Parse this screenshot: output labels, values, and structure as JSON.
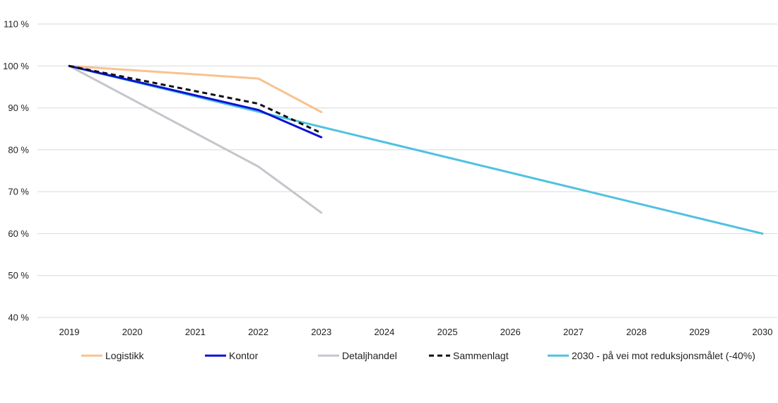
{
  "chart_data": {
    "type": "line",
    "title": "",
    "xlabel": "",
    "ylabel": "",
    "x": [
      "2019",
      "2020",
      "2021",
      "2022",
      "2023",
      "2024",
      "2025",
      "2026",
      "2027",
      "2028",
      "2029",
      "2030"
    ],
    "ylim": [
      40,
      110
    ],
    "yticks": [
      40,
      50,
      60,
      70,
      80,
      90,
      100,
      110
    ],
    "ytick_labels": [
      "40 %",
      "50 %",
      "60 %",
      "70 %",
      "80 %",
      "90 %",
      "100 %",
      "110 %"
    ],
    "grid": true,
    "legend_position": "bottom",
    "series": [
      {
        "name": "Logistikk",
        "color": "#f8c28e",
        "dashed": false,
        "points": [
          [
            "2019",
            100
          ],
          [
            "2020",
            99
          ],
          [
            "2021",
            98
          ],
          [
            "2022",
            97
          ],
          [
            "2023",
            89
          ]
        ]
      },
      {
        "name": "Kontor",
        "color": "#0a12d6",
        "dashed": false,
        "points": [
          [
            "2019",
            100
          ],
          [
            "2020",
            96.5
          ],
          [
            "2021",
            93
          ],
          [
            "2022",
            89.5
          ],
          [
            "2023",
            83
          ]
        ]
      },
      {
        "name": "Detaljhandel",
        "color": "#c5c5cc",
        "dashed": false,
        "points": [
          [
            "2019",
            100
          ],
          [
            "2020",
            92
          ],
          [
            "2021",
            84
          ],
          [
            "2022",
            76
          ],
          [
            "2023",
            65
          ]
        ]
      },
      {
        "name": "Sammenlagt",
        "color": "#111111",
        "dashed": true,
        "points": [
          [
            "2019",
            100
          ],
          [
            "2020",
            97
          ],
          [
            "2021",
            94
          ],
          [
            "2022",
            91
          ],
          [
            "2023",
            84
          ]
        ]
      },
      {
        "name": "2030 - på vei mot reduksjonsmålet (-40%)",
        "color": "#4fc1e0",
        "dashed": false,
        "points": [
          [
            "2019",
            100
          ],
          [
            "2030",
            60
          ]
        ]
      }
    ]
  }
}
